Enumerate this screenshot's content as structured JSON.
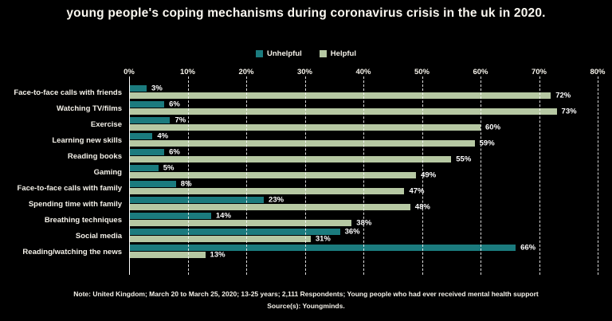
{
  "title": "young people's coping mechanisms during coronavirus crisis in the uk in 2020.",
  "colors": {
    "background": "#000000",
    "unhelpful": "#1b7b7e",
    "helpful": "#b6c8a3",
    "text": "#ffffff"
  },
  "chart_data": {
    "type": "bar",
    "orientation": "horizontal",
    "title": "young people's coping mechanisms during coronavirus crisis in the uk in 2020.",
    "categories": [
      "Face-to-face calls with friends",
      "Watching TV/films",
      "Exercise",
      "Learning new skills",
      "Reading books",
      "Gaming",
      "Face-to-face calls with family",
      "Spending time with family",
      "Breathing techniques",
      "Social media",
      "Reading/watching the news"
    ],
    "series": [
      {
        "name": "Unhelpful",
        "color": "#1b7b7e",
        "values": [
          3,
          6,
          7,
          4,
          6,
          5,
          8,
          23,
          14,
          36,
          66
        ]
      },
      {
        "name": "Helpful",
        "color": "#b6c8a3",
        "values": [
          72,
          73,
          60,
          59,
          55,
          49,
          47,
          48,
          38,
          31,
          13
        ]
      }
    ],
    "value_suffix": "%",
    "tick_labels": [
      "0%",
      "10%",
      "20%",
      "30%",
      "40%",
      "50%",
      "60%",
      "70%",
      "80%"
    ],
    "xlim": [
      0,
      80
    ],
    "grid": "vertical-dashed",
    "legend_position": "top-center"
  },
  "footnote": {
    "line1": "Note: United Kingdom; March 20 to March 25, 2020; 13-25 years; 2,111 Respondents; Young people who had ever received mental health support",
    "line2": "Source(s): Youngminds."
  }
}
